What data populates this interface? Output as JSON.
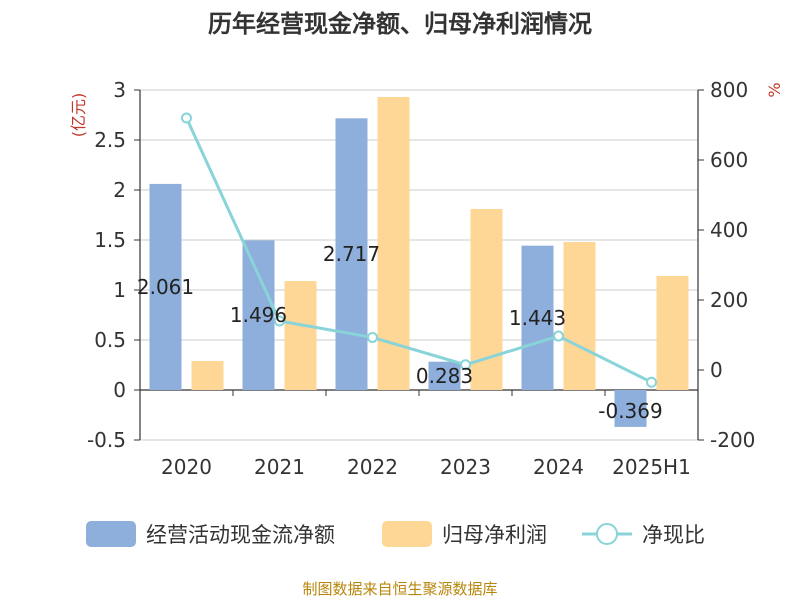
{
  "chart_data": {
    "type": "bar",
    "title": "历年经营现金净额、归母净利润情况",
    "categories": [
      "2020",
      "2021",
      "2022",
      "2023",
      "2024",
      "2025H1"
    ],
    "left_axis": {
      "unit": "(亿元)",
      "ylim": [
        -0.5,
        3
      ],
      "ticks": [
        "3",
        "2.5",
        "2",
        "1.5",
        "1",
        "0.5",
        "0",
        "-0.5"
      ]
    },
    "right_axis": {
      "unit": "%",
      "ylim": [
        -200,
        800
      ],
      "ticks": [
        "800",
        "600",
        "400",
        "200",
        "0",
        "-200"
      ]
    },
    "series": [
      {
        "name": "经营活动现金流净额",
        "kind": "bar",
        "axis": "left",
        "color": "#8eaedb",
        "values": [
          2.061,
          1.496,
          2.717,
          0.283,
          1.443,
          -0.369
        ],
        "labels": [
          "2.061",
          "1.496",
          "2.717",
          "0.283",
          "1.443",
          "-0.369"
        ]
      },
      {
        "name": "归母净利润",
        "kind": "bar",
        "axis": "left",
        "color": "#fed797",
        "values": [
          0.29,
          1.09,
          2.93,
          1.81,
          1.48,
          1.14
        ]
      },
      {
        "name": "净现比",
        "kind": "line",
        "axis": "right",
        "color": "#88d4d8",
        "values": [
          720,
          140,
          93,
          15,
          97,
          -35
        ]
      }
    ],
    "grid": true,
    "legend": "bottom"
  },
  "source": "制图数据来自恒生聚源数据库"
}
